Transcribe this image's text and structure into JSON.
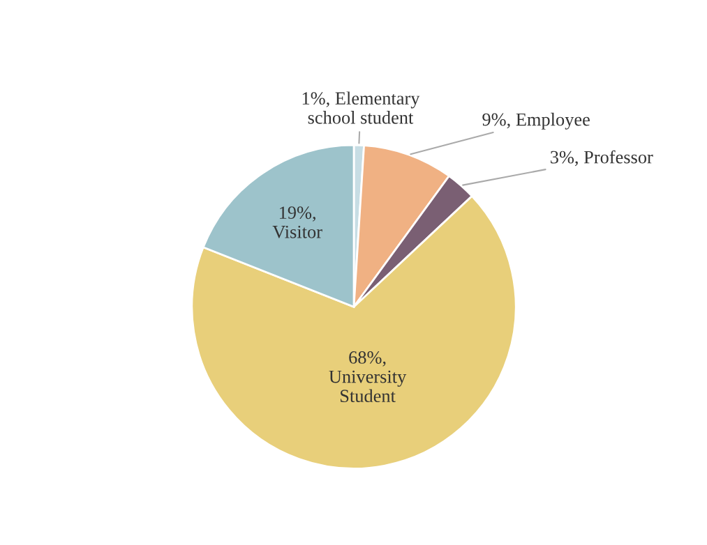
{
  "chart_data": {
    "type": "pie",
    "categories": [
      "Elementary school student",
      "Employee",
      "Professor",
      "University Student",
      "Visitor"
    ],
    "values": [
      1,
      9,
      3,
      68,
      19
    ],
    "value_labels": [
      "1%,",
      "9%,",
      "3%,",
      "68%,",
      "19%,"
    ],
    "colors": [
      "#c7dde4",
      "#f0b183",
      "#7a5f73",
      "#e8cf7a",
      "#9dc3cb"
    ],
    "legend": false
  }
}
